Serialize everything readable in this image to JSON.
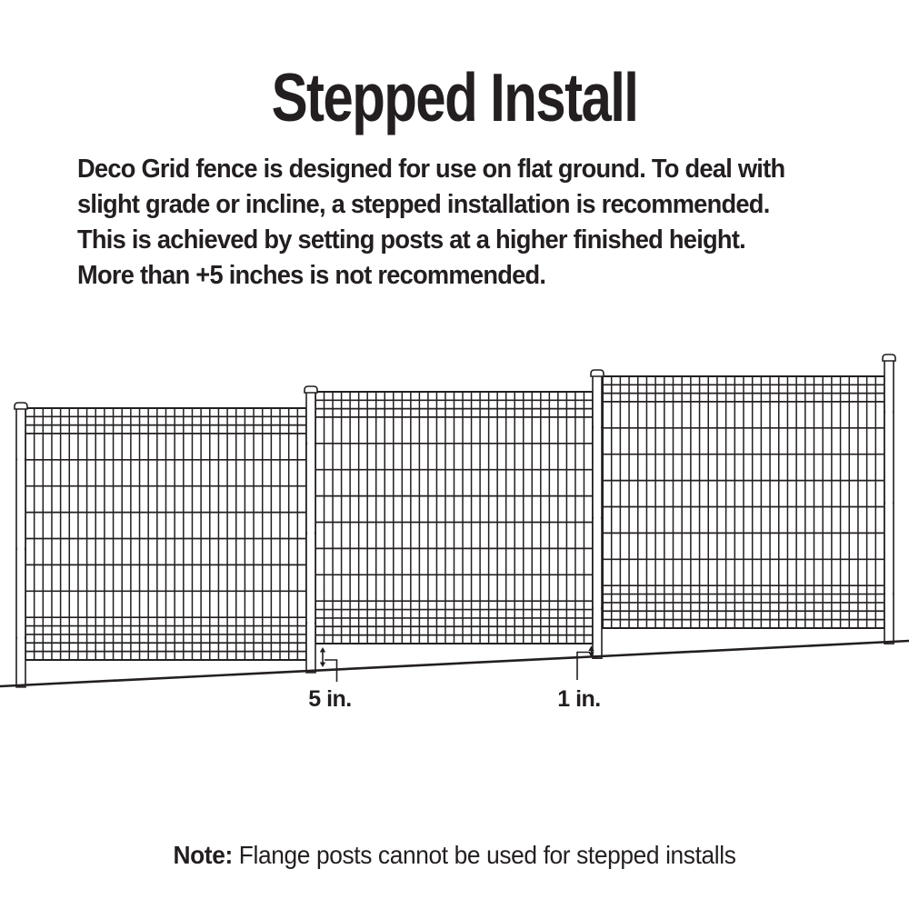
{
  "page": {
    "title": "Stepped Install",
    "description": {
      "lines": [
        "Deco Grid fence is designed for use on flat ground. To deal with",
        "slight grade or incline, a stepped installation is recommended.",
        "This is achieved by setting posts at a higher finished height.",
        "More than +5 inches is not recommended."
      ]
    },
    "note": {
      "label": "Note:",
      "text": " Flange posts cannot be used for stepped installs"
    }
  },
  "diagram": {
    "type": "fence-stepped-install-illustration",
    "panels_count": 3,
    "posts_count": 4,
    "line_color": "#231f20",
    "dimension_labels": [
      {
        "id": "step-gap-left",
        "text": "5 in."
      },
      {
        "id": "step-gap-right",
        "text": "1 in."
      }
    ]
  }
}
